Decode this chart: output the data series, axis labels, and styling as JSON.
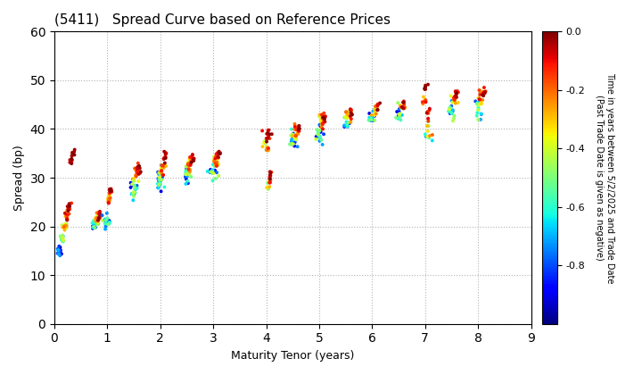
{
  "title": "(5411)   Spread Curve based on Reference Prices",
  "xlabel": "Maturity Tenor (years)",
  "ylabel": "Spread (bp)",
  "colorbar_label": "Time in years between 5/2/2025 and Trade Date\n(Past Trade Date is given as negative)",
  "xlim": [
    0,
    9
  ],
  "ylim": [
    0,
    60
  ],
  "xticks": [
    0,
    1,
    2,
    3,
    4,
    5,
    6,
    7,
    8,
    9
  ],
  "yticks": [
    0,
    10,
    20,
    30,
    40,
    50,
    60
  ],
  "cmap": "jet",
  "vmin": -1.0,
  "vmax": 0.0,
  "cbar_ticks": [
    0.0,
    -0.2,
    -0.4,
    -0.6,
    -0.8
  ],
  "clusters": [
    {
      "x_center": 0.1,
      "y_center": 15.0,
      "x_spread": 0.02,
      "y_spread": 0.5,
      "n": 20,
      "color_range": [
        -1.0,
        -0.7
      ]
    },
    {
      "x_center": 0.15,
      "y_center": 17.5,
      "x_spread": 0.02,
      "y_spread": 0.5,
      "n": 15,
      "color_range": [
        -0.7,
        -0.4
      ]
    },
    {
      "x_center": 0.2,
      "y_center": 20.0,
      "x_spread": 0.02,
      "y_spread": 0.5,
      "n": 15,
      "color_range": [
        -0.5,
        -0.2
      ]
    },
    {
      "x_center": 0.24,
      "y_center": 22.0,
      "x_spread": 0.02,
      "y_spread": 0.5,
      "n": 12,
      "color_range": [
        -0.3,
        -0.05
      ]
    },
    {
      "x_center": 0.28,
      "y_center": 24.0,
      "x_spread": 0.02,
      "y_spread": 0.5,
      "n": 10,
      "color_range": [
        -0.15,
        0.0
      ]
    },
    {
      "x_center": 0.32,
      "y_center": 33.5,
      "x_spread": 0.02,
      "y_spread": 0.5,
      "n": 8,
      "color_range": [
        -0.1,
        0.0
      ]
    },
    {
      "x_center": 0.36,
      "y_center": 35.0,
      "x_spread": 0.02,
      "y_spread": 0.4,
      "n": 5,
      "color_range": [
        -0.05,
        0.0
      ]
    },
    {
      "x_center": 0.75,
      "y_center": 20.5,
      "x_spread": 0.03,
      "y_spread": 0.6,
      "n": 18,
      "color_range": [
        -0.9,
        -0.5
      ]
    },
    {
      "x_center": 0.8,
      "y_center": 21.5,
      "x_spread": 0.03,
      "y_spread": 0.6,
      "n": 15,
      "color_range": [
        -0.5,
        -0.2
      ]
    },
    {
      "x_center": 0.85,
      "y_center": 22.0,
      "x_spread": 0.02,
      "y_spread": 0.5,
      "n": 10,
      "color_range": [
        -0.2,
        0.0
      ]
    },
    {
      "x_center": 1.0,
      "y_center": 21.0,
      "x_spread": 0.03,
      "y_spread": 0.8,
      "n": 20,
      "color_range": [
        -0.9,
        -0.5
      ]
    },
    {
      "x_center": 1.03,
      "y_center": 25.5,
      "x_spread": 0.02,
      "y_spread": 0.6,
      "n": 15,
      "color_range": [
        -0.4,
        -0.1
      ]
    },
    {
      "x_center": 1.06,
      "y_center": 27.5,
      "x_spread": 0.02,
      "y_spread": 0.5,
      "n": 10,
      "color_range": [
        -0.15,
        0.0
      ]
    },
    {
      "x_center": 1.5,
      "y_center": 27.5,
      "x_spread": 0.04,
      "y_spread": 1.0,
      "n": 25,
      "color_range": [
        -0.9,
        -0.4
      ]
    },
    {
      "x_center": 1.55,
      "y_center": 30.5,
      "x_spread": 0.03,
      "y_spread": 0.8,
      "n": 15,
      "color_range": [
        -0.4,
        -0.1
      ]
    },
    {
      "x_center": 1.6,
      "y_center": 32.0,
      "x_spread": 0.02,
      "y_spread": 0.6,
      "n": 10,
      "color_range": [
        -0.15,
        0.0
      ]
    },
    {
      "x_center": 2.0,
      "y_center": 29.5,
      "x_spread": 0.04,
      "y_spread": 1.0,
      "n": 25,
      "color_range": [
        -0.9,
        -0.4
      ]
    },
    {
      "x_center": 2.05,
      "y_center": 32.0,
      "x_spread": 0.03,
      "y_spread": 0.8,
      "n": 15,
      "color_range": [
        -0.4,
        -0.1
      ]
    },
    {
      "x_center": 2.1,
      "y_center": 34.5,
      "x_spread": 0.02,
      "y_spread": 0.6,
      "n": 10,
      "color_range": [
        -0.15,
        0.0
      ]
    },
    {
      "x_center": 2.5,
      "y_center": 30.5,
      "x_spread": 0.04,
      "y_spread": 0.8,
      "n": 20,
      "color_range": [
        -0.9,
        -0.4
      ]
    },
    {
      "x_center": 2.55,
      "y_center": 32.5,
      "x_spread": 0.03,
      "y_spread": 0.7,
      "n": 15,
      "color_range": [
        -0.4,
        -0.1
      ]
    },
    {
      "x_center": 2.6,
      "y_center": 34.0,
      "x_spread": 0.02,
      "y_spread": 0.5,
      "n": 10,
      "color_range": [
        -0.15,
        0.0
      ]
    },
    {
      "x_center": 3.0,
      "y_center": 31.5,
      "x_spread": 0.04,
      "y_spread": 0.8,
      "n": 20,
      "color_range": [
        -0.9,
        -0.4
      ]
    },
    {
      "x_center": 3.05,
      "y_center": 33.5,
      "x_spread": 0.03,
      "y_spread": 0.7,
      "n": 15,
      "color_range": [
        -0.4,
        -0.1
      ]
    },
    {
      "x_center": 3.1,
      "y_center": 35.0,
      "x_spread": 0.02,
      "y_spread": 0.5,
      "n": 10,
      "color_range": [
        -0.15,
        0.0
      ]
    },
    {
      "x_center": 4.0,
      "y_center": 37.0,
      "x_spread": 0.04,
      "y_spread": 1.0,
      "n": 15,
      "color_range": [
        -0.5,
        -0.1
      ]
    },
    {
      "x_center": 4.03,
      "y_center": 38.5,
      "x_spread": 0.03,
      "y_spread": 0.7,
      "n": 10,
      "color_range": [
        -0.1,
        0.0
      ]
    },
    {
      "x_center": 4.05,
      "y_center": 29.0,
      "x_spread": 0.03,
      "y_spread": 0.8,
      "n": 12,
      "color_range": [
        -0.5,
        -0.1
      ]
    },
    {
      "x_center": 4.08,
      "y_center": 30.5,
      "x_spread": 0.02,
      "y_spread": 0.5,
      "n": 8,
      "color_range": [
        -0.15,
        0.0
      ]
    },
    {
      "x_center": 4.5,
      "y_center": 37.5,
      "x_spread": 0.04,
      "y_spread": 1.0,
      "n": 20,
      "color_range": [
        -0.9,
        -0.4
      ]
    },
    {
      "x_center": 4.55,
      "y_center": 39.0,
      "x_spread": 0.03,
      "y_spread": 0.8,
      "n": 15,
      "color_range": [
        -0.4,
        -0.1
      ]
    },
    {
      "x_center": 4.6,
      "y_center": 40.0,
      "x_spread": 0.02,
      "y_spread": 0.5,
      "n": 10,
      "color_range": [
        -0.15,
        0.0
      ]
    },
    {
      "x_center": 5.0,
      "y_center": 39.0,
      "x_spread": 0.04,
      "y_spread": 1.0,
      "n": 20,
      "color_range": [
        -0.9,
        -0.4
      ]
    },
    {
      "x_center": 5.05,
      "y_center": 41.5,
      "x_spread": 0.03,
      "y_spread": 0.8,
      "n": 15,
      "color_range": [
        -0.4,
        -0.1
      ]
    },
    {
      "x_center": 5.1,
      "y_center": 42.5,
      "x_spread": 0.02,
      "y_spread": 0.5,
      "n": 10,
      "color_range": [
        -0.15,
        0.0
      ]
    },
    {
      "x_center": 5.5,
      "y_center": 41.0,
      "x_spread": 0.04,
      "y_spread": 0.8,
      "n": 15,
      "color_range": [
        -0.9,
        -0.5
      ]
    },
    {
      "x_center": 5.55,
      "y_center": 42.5,
      "x_spread": 0.03,
      "y_spread": 0.7,
      "n": 12,
      "color_range": [
        -0.5,
        -0.2
      ]
    },
    {
      "x_center": 5.6,
      "y_center": 43.5,
      "x_spread": 0.02,
      "y_spread": 0.5,
      "n": 8,
      "color_range": [
        -0.2,
        0.0
      ]
    },
    {
      "x_center": 6.0,
      "y_center": 42.0,
      "x_spread": 0.04,
      "y_spread": 0.8,
      "n": 12,
      "color_range": [
        -0.9,
        -0.5
      ]
    },
    {
      "x_center": 6.05,
      "y_center": 43.5,
      "x_spread": 0.03,
      "y_spread": 0.6,
      "n": 10,
      "color_range": [
        -0.5,
        -0.2
      ]
    },
    {
      "x_center": 6.1,
      "y_center": 44.5,
      "x_spread": 0.02,
      "y_spread": 0.5,
      "n": 8,
      "color_range": [
        -0.2,
        0.0
      ]
    },
    {
      "x_center": 6.5,
      "y_center": 43.0,
      "x_spread": 0.04,
      "y_spread": 0.8,
      "n": 12,
      "color_range": [
        -0.9,
        -0.5
      ]
    },
    {
      "x_center": 6.55,
      "y_center": 44.0,
      "x_spread": 0.03,
      "y_spread": 0.6,
      "n": 10,
      "color_range": [
        -0.5,
        -0.2
      ]
    },
    {
      "x_center": 6.6,
      "y_center": 45.0,
      "x_spread": 0.02,
      "y_spread": 0.5,
      "n": 8,
      "color_range": [
        -0.2,
        0.0
      ]
    },
    {
      "x_center": 7.0,
      "y_center": 45.5,
      "x_spread": 0.03,
      "y_spread": 0.8,
      "n": 10,
      "color_range": [
        -0.4,
        -0.1
      ]
    },
    {
      "x_center": 7.02,
      "y_center": 48.5,
      "x_spread": 0.02,
      "y_spread": 0.5,
      "n": 6,
      "color_range": [
        -0.05,
        0.0
      ]
    },
    {
      "x_center": 7.05,
      "y_center": 39.0,
      "x_spread": 0.04,
      "y_spread": 1.0,
      "n": 12,
      "color_range": [
        -0.7,
        -0.2
      ]
    },
    {
      "x_center": 7.08,
      "y_center": 43.0,
      "x_spread": 0.03,
      "y_spread": 0.7,
      "n": 8,
      "color_range": [
        -0.2,
        -0.05
      ]
    },
    {
      "x_center": 7.5,
      "y_center": 43.5,
      "x_spread": 0.04,
      "y_spread": 1.0,
      "n": 15,
      "color_range": [
        -0.8,
        -0.4
      ]
    },
    {
      "x_center": 7.55,
      "y_center": 46.0,
      "x_spread": 0.03,
      "y_spread": 0.8,
      "n": 12,
      "color_range": [
        -0.4,
        -0.1
      ]
    },
    {
      "x_center": 7.6,
      "y_center": 47.5,
      "x_spread": 0.02,
      "y_spread": 0.5,
      "n": 8,
      "color_range": [
        -0.15,
        0.0
      ]
    },
    {
      "x_center": 8.0,
      "y_center": 44.5,
      "x_spread": 0.04,
      "y_spread": 1.0,
      "n": 15,
      "color_range": [
        -0.8,
        -0.4
      ]
    },
    {
      "x_center": 8.05,
      "y_center": 46.5,
      "x_spread": 0.03,
      "y_spread": 0.8,
      "n": 12,
      "color_range": [
        -0.4,
        -0.1
      ]
    },
    {
      "x_center": 8.1,
      "y_center": 47.5,
      "x_spread": 0.02,
      "y_spread": 0.5,
      "n": 8,
      "color_range": [
        -0.15,
        0.0
      ]
    }
  ]
}
